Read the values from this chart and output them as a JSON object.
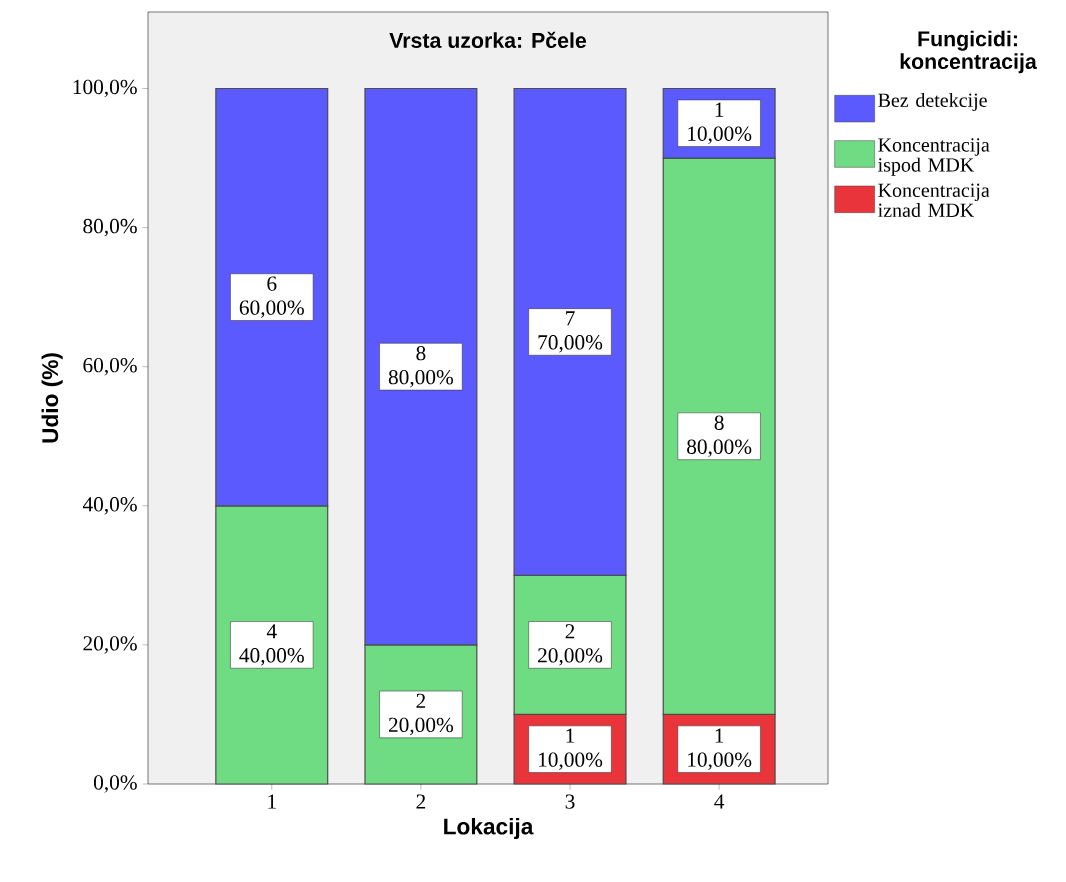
{
  "chart_data": {
    "type": "bar",
    "stacked": true,
    "title": "Vrsta uzorka: Pčele",
    "xlabel": "Lokacija",
    "ylabel": "Udio (%)",
    "legend_title": "Fungicidi: koncentracija",
    "legend": "right",
    "categories": [
      "1",
      "2",
      "3",
      "4"
    ],
    "ylim": [
      0,
      111
    ],
    "yticks": [
      {
        "value": 0,
        "label": "0,0%"
      },
      {
        "value": 20,
        "label": "20,0%"
      },
      {
        "value": 40,
        "label": "40,0%"
      },
      {
        "value": 60,
        "label": "60,0%"
      },
      {
        "value": 80,
        "label": "80,0%"
      },
      {
        "value": 100,
        "label": "100,0%"
      }
    ],
    "series": [
      {
        "name": "Koncentracija iznad MDK",
        "color": "#e8343a",
        "values": [
          null,
          null,
          10,
          10
        ],
        "value_labels": [
          null,
          null,
          "1 10,00%",
          "1 10,00%"
        ]
      },
      {
        "name": "Koncentracija ispod MDK",
        "color": "#6fdc84",
        "values": [
          40,
          20,
          20,
          80
        ],
        "value_labels": [
          "4 40,00%",
          "2 20,00%",
          "2 20,00%",
          "8 80,00%"
        ]
      },
      {
        "name": "Bez detekcije",
        "color": "#5a5aff",
        "values": [
          60,
          80,
          70,
          10
        ],
        "value_labels": [
          "6 60,00%",
          "8 80,00%",
          "7 70,00%",
          "1 10,00%"
        ]
      }
    ]
  }
}
